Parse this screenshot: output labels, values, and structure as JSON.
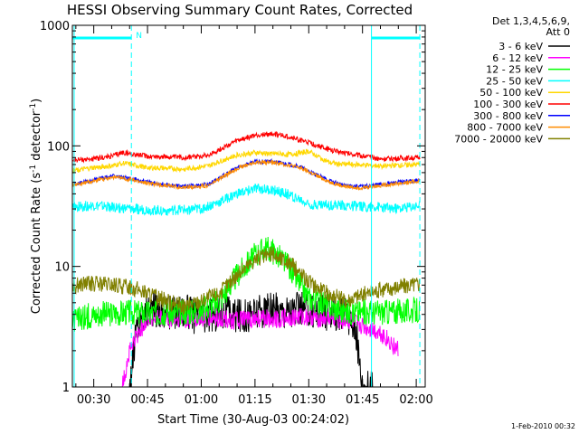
{
  "chart_data": {
    "type": "line",
    "title": "HESSI Observing Summary Count Rates, Corrected",
    "xlabel": "Start Time (30-Aug-03 00:24:02)",
    "ylabel_main": "Corrected Count Rate (s",
    "ylabel_exp1": "-1",
    "ylabel_mid": " detector",
    "ylabel_exp2": "-1",
    "ylabel_end": ")",
    "yscale": "log",
    "ylim": [
      1,
      1000
    ],
    "yticks": [
      {
        "value": 1,
        "label": "1"
      },
      {
        "value": 10,
        "label": "10"
      },
      {
        "value": 100,
        "label": "100"
      },
      {
        "value": 1000,
        "label": "1000"
      }
    ],
    "xlim_minutes": [
      24.03,
      122.5
    ],
    "xticks": [
      {
        "minute": 30,
        "label": "00:30"
      },
      {
        "minute": 45,
        "label": "00:45"
      },
      {
        "minute": 60,
        "label": "01:00"
      },
      {
        "minute": 75,
        "label": "01:15"
      },
      {
        "minute": 90,
        "label": "01:30"
      },
      {
        "minute": 105,
        "label": "01:45"
      },
      {
        "minute": 120,
        "label": "02:00"
      }
    ],
    "night_marker": "N",
    "night_intervals_minutes": [
      [
        24.03,
        40.5
      ],
      [
        107.5,
        121
      ]
    ],
    "saa_dashed_minutes": [
      40.5,
      121
    ],
    "legend_header": [
      "Det 1,3,4,5,6,9,",
      "Att 0"
    ],
    "series": [
      {
        "name": "3 - 6 keV",
        "color": "#000000",
        "x": [
          40,
          42,
          44,
          46,
          50,
          55,
          60,
          65,
          70,
          80,
          90,
          95,
          100,
          103,
          105,
          108
        ],
        "y": [
          1,
          3.2,
          4.0,
          4.6,
          4.0,
          4.4,
          3.6,
          4.2,
          3.9,
          4.3,
          4.4,
          4.1,
          3.9,
          3.3,
          1,
          1
        ]
      },
      {
        "name": "6 - 12 keV",
        "color": "#ff00ff",
        "x": [
          38,
          40,
          42,
          45,
          50,
          60,
          70,
          80,
          90,
          100,
          110,
          115
        ],
        "y": [
          1,
          2.0,
          2.6,
          3.8,
          3.6,
          3.7,
          3.6,
          3.7,
          3.8,
          3.6,
          2.8,
          2.0
        ]
      },
      {
        "name": "12 - 25 keV",
        "color": "#00ff00",
        "x": [
          24,
          30,
          40,
          50,
          60,
          65,
          70,
          75,
          78,
          82,
          86,
          90,
          100,
          110,
          121
        ],
        "y": [
          3.5,
          4.0,
          4.2,
          4.1,
          4.3,
          5.2,
          8.5,
          12.5,
          14.5,
          12.0,
          8.5,
          5.5,
          4.2,
          4.2,
          4.3
        ]
      },
      {
        "name": "25 - 50 keV",
        "color": "#00ffff",
        "x": [
          24,
          30,
          40,
          50,
          60,
          65,
          70,
          75,
          80,
          85,
          90,
          100,
          110,
          115,
          121
        ],
        "y": [
          31,
          32,
          30,
          29,
          30,
          34,
          40,
          44,
          43,
          39,
          33,
          32,
          31,
          30,
          32
        ]
      },
      {
        "name": "50 - 100 keV",
        "color": "#ffd700",
        "x": [
          24,
          30,
          35,
          38,
          45,
          55,
          62,
          66,
          70,
          75,
          80,
          85,
          90,
          96,
          110,
          121
        ],
        "y": [
          62,
          66,
          68,
          72,
          66,
          64,
          68,
          76,
          84,
          88,
          86,
          85,
          90,
          72,
          68,
          70
        ]
      },
      {
        "name": "100 - 300 keV",
        "color": "#ff0000",
        "x": [
          24,
          30,
          35,
          38,
          45,
          55,
          62,
          66,
          70,
          75,
          80,
          85,
          90,
          96,
          110,
          121
        ],
        "y": [
          76,
          78,
          82,
          88,
          82,
          80,
          84,
          96,
          110,
          122,
          126,
          118,
          106,
          92,
          78,
          80
        ]
      },
      {
        "name": "300 - 800 keV",
        "color": "#0000ff",
        "x": [
          24,
          30,
          35,
          38,
          45,
          55,
          62,
          66,
          70,
          75,
          80,
          85,
          88,
          92,
          96,
          100,
          105,
          110,
          121
        ],
        "y": [
          48,
          52,
          56,
          55,
          50,
          46,
          48,
          56,
          66,
          74,
          74,
          70,
          66,
          58,
          51,
          47,
          46,
          48,
          52
        ]
      },
      {
        "name": "800 - 7000 keV",
        "color": "#ff8c00",
        "x": [
          24,
          30,
          35,
          38,
          45,
          55,
          62,
          66,
          70,
          75,
          80,
          85,
          88,
          92,
          96,
          100,
          105,
          110,
          121
        ],
        "y": [
          47,
          51,
          55,
          54,
          49,
          45,
          47,
          55,
          65,
          73,
          73,
          69,
          65,
          57,
          50,
          46,
          45,
          47,
          51
        ]
      },
      {
        "name": "7000 - 20000 keV",
        "color": "#808000",
        "x": [
          24,
          30,
          40,
          50,
          55,
          60,
          65,
          70,
          75,
          80,
          85,
          90,
          95,
          100,
          105,
          110,
          121
        ],
        "y": [
          7.0,
          7.2,
          6.8,
          5.2,
          4.6,
          5.2,
          6.0,
          8.5,
          11.5,
          12.5,
          10.5,
          7.5,
          6.0,
          5.2,
          5.8,
          6.4,
          7.2
        ]
      }
    ]
  },
  "footer": {
    "date_stamp": "1-Feb-2010 00:32"
  }
}
